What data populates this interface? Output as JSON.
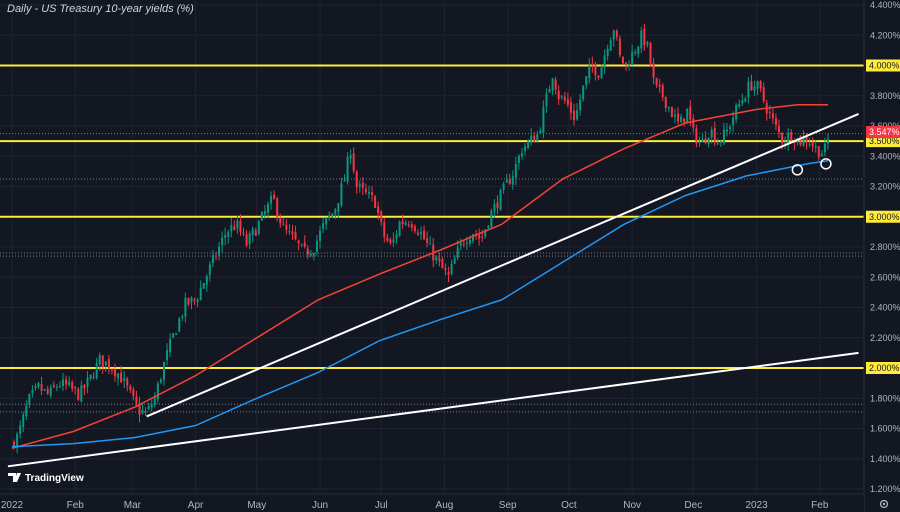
{
  "chart_data": {
    "type": "candlestick",
    "title": "Daily - US Treasury 10-year yields (%)",
    "watermark": "TradingView",
    "ylim": [
      1.2,
      4.4
    ],
    "xlim": [
      0,
      410
    ],
    "yticks": [
      {
        "value": 4.4,
        "label": "4.400%"
      },
      {
        "value": 4.2,
        "label": "4.200%"
      },
      {
        "value": 3.8,
        "label": "3.800%"
      },
      {
        "value": 3.6,
        "label": "3.600%"
      },
      {
        "value": 3.4,
        "label": "3.400%"
      },
      {
        "value": 3.2,
        "label": "3.200%"
      },
      {
        "value": 2.8,
        "label": "2.800%"
      },
      {
        "value": 2.6,
        "label": "2.600%"
      },
      {
        "value": 2.4,
        "label": "2.400%"
      },
      {
        "value": 2.2,
        "label": "2.200%"
      },
      {
        "value": 1.8,
        "label": "1.800%"
      },
      {
        "value": 1.6,
        "label": "1.600%"
      },
      {
        "value": 1.4,
        "label": "1.400%"
      },
      {
        "value": 1.2,
        "label": "1.200%"
      }
    ],
    "xticks": [
      {
        "day": 0,
        "label": "2022"
      },
      {
        "day": 31,
        "label": "Feb"
      },
      {
        "day": 59,
        "label": "Mar"
      },
      {
        "day": 90,
        "label": "Apr"
      },
      {
        "day": 120,
        "label": "May"
      },
      {
        "day": 151,
        "label": "Jun"
      },
      {
        "day": 181,
        "label": "Jul"
      },
      {
        "day": 212,
        "label": "Aug"
      },
      {
        "day": 243,
        "label": "Sep"
      },
      {
        "day": 273,
        "label": "Oct"
      },
      {
        "day": 304,
        "label": "Nov"
      },
      {
        "day": 334,
        "label": "Dec"
      },
      {
        "day": 365,
        "label": "2023"
      },
      {
        "day": 396,
        "label": "Feb"
      }
    ],
    "horizontal_levels": [
      {
        "value": 4.0,
        "label": "4.000%",
        "color": "#ffeb3b"
      },
      {
        "value": 3.5,
        "label": "3.500%",
        "color": "#ffeb3b"
      },
      {
        "value": 3.0,
        "label": "3.000%",
        "color": "#ffeb3b"
      },
      {
        "value": 2.0,
        "label": "2.000%",
        "color": "#ffeb3b"
      }
    ],
    "last_price": {
      "value": 3.547,
      "label": "3.547%",
      "color": "#f23645"
    },
    "dotted_levels": [
      3.55,
      3.25,
      2.76,
      2.74,
      1.76,
      1.71
    ],
    "trendlines": [
      {
        "name": "trendline-lower",
        "from": {
          "day": -2,
          "value": 1.35
        },
        "to": {
          "day": 415,
          "value": 2.1
        },
        "color": "#ffffff"
      },
      {
        "name": "trendline-upper",
        "from": {
          "day": 66,
          "value": 1.68
        },
        "to": {
          "day": 415,
          "value": 3.68
        },
        "color": "#ffffff"
      }
    ],
    "series": [
      {
        "name": "ma-100",
        "color": "#f44336",
        "points": [
          [
            0,
            1.47
          ],
          [
            30,
            1.58
          ],
          [
            60,
            1.74
          ],
          [
            90,
            1.95
          ],
          [
            120,
            2.2
          ],
          [
            150,
            2.45
          ],
          [
            180,
            2.62
          ],
          [
            210,
            2.78
          ],
          [
            240,
            2.95
          ],
          [
            270,
            3.25
          ],
          [
            300,
            3.45
          ],
          [
            330,
            3.62
          ],
          [
            365,
            3.71
          ],
          [
            385,
            3.74
          ],
          [
            400,
            3.74
          ]
        ]
      },
      {
        "name": "ma-200",
        "color": "#2196f3",
        "points": [
          [
            0,
            1.48
          ],
          [
            30,
            1.5
          ],
          [
            60,
            1.54
          ],
          [
            90,
            1.62
          ],
          [
            120,
            1.8
          ],
          [
            150,
            1.97
          ],
          [
            180,
            2.18
          ],
          [
            210,
            2.32
          ],
          [
            240,
            2.45
          ],
          [
            270,
            2.7
          ],
          [
            300,
            2.95
          ],
          [
            330,
            3.14
          ],
          [
            360,
            3.27
          ],
          [
            390,
            3.35
          ],
          [
            400,
            3.37
          ]
        ]
      }
    ],
    "circle_markers": [
      {
        "day": 385,
        "value": 3.31
      },
      {
        "day": 399,
        "value": 3.35
      }
    ],
    "candle_colors": {
      "up": "#089981",
      "down": "#f23645"
    },
    "price_path": [
      [
        0,
        1.5
      ],
      [
        3,
        1.55
      ],
      [
        8,
        1.78
      ],
      [
        13,
        1.87
      ],
      [
        18,
        1.82
      ],
      [
        23,
        1.9
      ],
      [
        28,
        1.87
      ],
      [
        33,
        1.82
      ],
      [
        38,
        1.92
      ],
      [
        43,
        2.05
      ],
      [
        48,
        2.02
      ],
      [
        53,
        1.95
      ],
      [
        58,
        1.82
      ],
      [
        62,
        1.72
      ],
      [
        66,
        1.7
      ],
      [
        70,
        1.8
      ],
      [
        75,
        2.05
      ],
      [
        80,
        2.25
      ],
      [
        85,
        2.42
      ],
      [
        90,
        2.45
      ],
      [
        95,
        2.6
      ],
      [
        100,
        2.75
      ],
      [
        105,
        2.9
      ],
      [
        110,
        2.95
      ],
      [
        115,
        2.82
      ],
      [
        120,
        2.93
      ],
      [
        125,
        3.05
      ],
      [
        128,
        3.12
      ],
      [
        133,
        2.92
      ],
      [
        138,
        2.85
      ],
      [
        143,
        2.76
      ],
      [
        148,
        2.8
      ],
      [
        153,
        2.95
      ],
      [
        158,
        3.04
      ],
      [
        163,
        3.25
      ],
      [
        166,
        3.45
      ],
      [
        169,
        3.2
      ],
      [
        173,
        3.15
      ],
      [
        178,
        3.1
      ],
      [
        182,
        2.88
      ],
      [
        186,
        2.8
      ],
      [
        190,
        2.96
      ],
      [
        195,
        2.98
      ],
      [
        200,
        2.9
      ],
      [
        205,
        2.78
      ],
      [
        210,
        2.67
      ],
      [
        214,
        2.6
      ],
      [
        218,
        2.75
      ],
      [
        222,
        2.86
      ],
      [
        226,
        2.9
      ],
      [
        230,
        2.85
      ],
      [
        234,
        3.0
      ],
      [
        238,
        3.1
      ],
      [
        242,
        3.2
      ],
      [
        246,
        3.3
      ],
      [
        250,
        3.45
      ],
      [
        254,
        3.5
      ],
      [
        258,
        3.55
      ],
      [
        262,
        3.78
      ],
      [
        265,
        3.95
      ],
      [
        268,
        3.8
      ],
      [
        272,
        3.75
      ],
      [
        276,
        3.65
      ],
      [
        280,
        3.85
      ],
      [
        284,
        4.0
      ],
      [
        288,
        3.95
      ],
      [
        292,
        4.15
      ],
      [
        295,
        4.25
      ],
      [
        298,
        4.05
      ],
      [
        301,
        4.0
      ],
      [
        305,
        4.1
      ],
      [
        309,
        4.2
      ],
      [
        312,
        4.1
      ],
      [
        315,
        3.85
      ],
      [
        319,
        3.8
      ],
      [
        323,
        3.7
      ],
      [
        327,
        3.6
      ],
      [
        331,
        3.7
      ],
      [
        334,
        3.55
      ],
      [
        338,
        3.48
      ],
      [
        342,
        3.58
      ],
      [
        346,
        3.5
      ],
      [
        350,
        3.55
      ],
      [
        354,
        3.68
      ],
      [
        358,
        3.78
      ],
      [
        362,
        3.88
      ],
      [
        366,
        3.85
      ],
      [
        370,
        3.72
      ],
      [
        374,
        3.6
      ],
      [
        378,
        3.5
      ],
      [
        382,
        3.55
      ],
      [
        386,
        3.5
      ],
      [
        390,
        3.52
      ],
      [
        394,
        3.45
      ],
      [
        398,
        3.42
      ],
      [
        401,
        3.55
      ]
    ]
  }
}
